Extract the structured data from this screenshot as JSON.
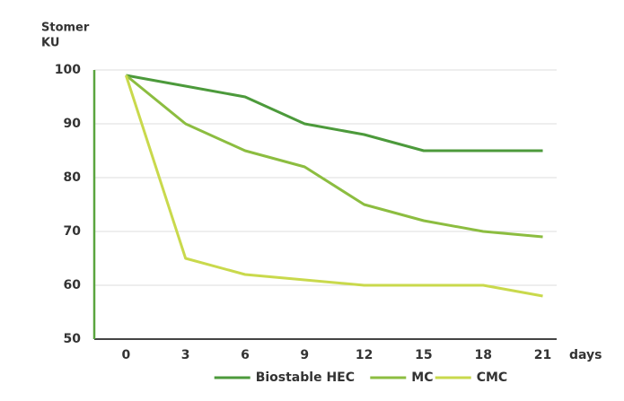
{
  "chart_data": {
    "type": "line",
    "y_label": [
      "Stomer",
      "KU"
    ],
    "x_label": "days",
    "x": [
      0,
      3,
      6,
      9,
      12,
      15,
      18,
      21
    ],
    "xlim": [
      -1.6,
      21.7
    ],
    "xticks": [
      0,
      3,
      6,
      9,
      12,
      15,
      18,
      21
    ],
    "ylim": [
      50,
      100
    ],
    "yticks": [
      50,
      60,
      70,
      80,
      90,
      100
    ],
    "grid": true,
    "axis_color": "#5aa53f",
    "legend": "bottom",
    "series": [
      {
        "name": "Biostable HEC",
        "color": "#4c9a3b",
        "values": [
          99,
          97,
          95,
          90,
          88,
          85,
          85,
          85
        ]
      },
      {
        "name": "MC",
        "color": "#8cbd40",
        "values": [
          99,
          90,
          85,
          82,
          75,
          72,
          70,
          69
        ]
      },
      {
        "name": "CMC",
        "color": "#c9d94c",
        "values": [
          99,
          65,
          62,
          61,
          60,
          60,
          60,
          58
        ]
      }
    ]
  }
}
